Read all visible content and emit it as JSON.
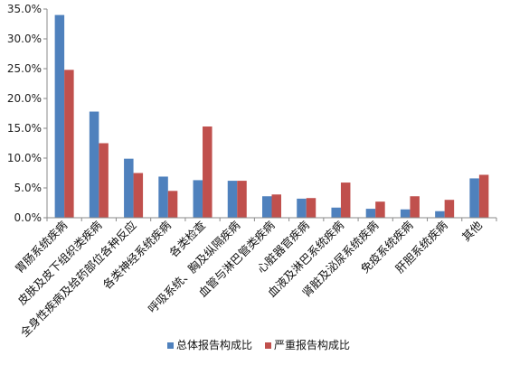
{
  "chart_data": {
    "type": "bar",
    "categories": [
      "胃肠系统疾病",
      "皮肤及皮下组织类疾病",
      "全身性疾病及给药部位各种反应",
      "各类神经系统疾病",
      "各类检查",
      "呼吸系统、胸及纵隔疾病",
      "血管与淋巴管类疾病",
      "心脏器官疾病",
      "血液及淋巴系统疾病",
      "肾脏及泌尿系统疾病",
      "免疫系统疾病",
      "肝胆系统疾病",
      "其他"
    ],
    "series": [
      {
        "name": "总体报告构成比",
        "values": [
          34.0,
          17.8,
          9.9,
          6.9,
          6.3,
          6.2,
          3.6,
          3.2,
          1.7,
          1.5,
          1.4,
          1.1,
          6.6
        ]
      },
      {
        "name": "严重报告构成比",
        "values": [
          24.8,
          12.5,
          7.5,
          4.5,
          15.3,
          6.2,
          3.9,
          3.3,
          5.9,
          2.7,
          3.6,
          3.0,
          7.2
        ]
      }
    ],
    "ylim": [
      0,
      35
    ],
    "yticks": [
      "0.0%",
      "5.0%",
      "10.0%",
      "15.0%",
      "20.0%",
      "25.0%",
      "30.0%",
      "35.0%"
    ],
    "colors": [
      "#4f81bd",
      "#c0504d"
    ],
    "legend_position": "bottom",
    "grid": false
  }
}
